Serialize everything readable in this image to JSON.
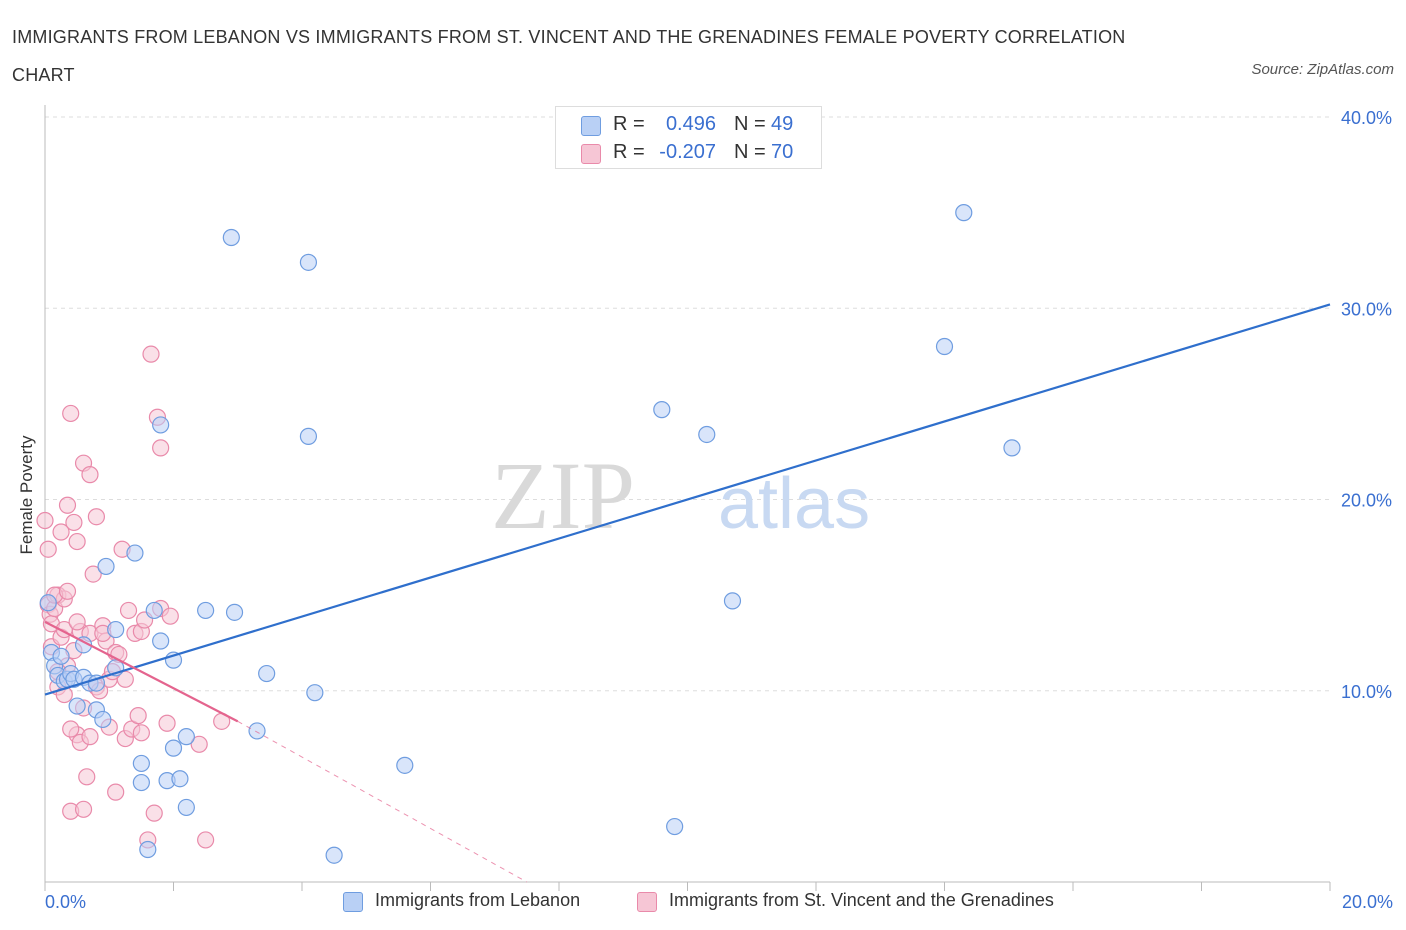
{
  "title": "IMMIGRANTS FROM LEBANON VS IMMIGRANTS FROM ST. VINCENT AND THE GRENADINES FEMALE POVERTY CORRELATION CHART",
  "source": "Source: ZipAtlas.com",
  "watermark": {
    "zip": "ZIP",
    "atlas": "atlas"
  },
  "legend_top": {
    "r_label": "R =",
    "n_label": "N =",
    "rows": [
      {
        "r": "0.496",
        "n": "49"
      },
      {
        "r": "-0.207",
        "n": "70"
      }
    ]
  },
  "colors": {
    "blue_fill": "#b9d0f5",
    "blue_stroke": "#6f9de0",
    "blue_line": "#2f6fcc",
    "pink_fill": "#f6c6d5",
    "pink_stroke": "#e98aaa",
    "pink_line": "#e4648e",
    "axis_text": "#3a6fd0",
    "grid": "#dddddd"
  },
  "chart_data": {
    "type": "scatter",
    "title": "IMMIGRANTS FROM LEBANON VS IMMIGRANTS FROM ST. VINCENT AND THE GRENADINES FEMALE POVERTY CORRELATION CHART",
    "xlabel": "",
    "ylabel": "Female Poverty",
    "xlim": [
      0,
      20
    ],
    "ylim": [
      0,
      40
    ],
    "x_tick_labels": [
      "0.0%",
      "20.0%"
    ],
    "y_ticks": [
      10,
      20,
      30,
      40
    ],
    "y_tick_labels": [
      "10.0%",
      "20.0%",
      "30.0%",
      "40.0%"
    ],
    "grid": true,
    "legend_position": "bottom",
    "series": [
      {
        "name": "Immigrants from Lebanon",
        "r": 0.496,
        "n": 49,
        "trend": {
          "x": [
            0,
            20
          ],
          "y": [
            9.8,
            30.2
          ]
        },
        "points": [
          [
            0.05,
            14.6
          ],
          [
            0.1,
            12.0
          ],
          [
            0.15,
            11.3
          ],
          [
            0.2,
            10.8
          ],
          [
            0.3,
            10.5
          ],
          [
            0.35,
            10.6
          ],
          [
            0.4,
            10.9
          ],
          [
            0.45,
            10.6
          ],
          [
            0.5,
            9.2
          ],
          [
            0.6,
            12.4
          ],
          [
            0.6,
            10.7
          ],
          [
            0.7,
            10.4
          ],
          [
            0.8,
            9.0
          ],
          [
            0.9,
            8.5
          ],
          [
            0.95,
            16.5
          ],
          [
            1.1,
            13.2
          ],
          [
            1.1,
            11.2
          ],
          [
            1.4,
            17.2
          ],
          [
            1.5,
            6.2
          ],
          [
            1.5,
            5.2
          ],
          [
            1.6,
            1.7
          ],
          [
            1.7,
            14.2
          ],
          [
            1.8,
            23.9
          ],
          [
            1.8,
            12.6
          ],
          [
            1.9,
            5.3
          ],
          [
            2.0,
            11.6
          ],
          [
            2.0,
            7.0
          ],
          [
            2.1,
            5.4
          ],
          [
            2.2,
            7.6
          ],
          [
            2.2,
            3.9
          ],
          [
            2.5,
            14.2
          ],
          [
            2.9,
            33.7
          ],
          [
            2.95,
            14.1
          ],
          [
            3.3,
            7.9
          ],
          [
            3.45,
            10.9
          ],
          [
            4.1,
            32.4
          ],
          [
            4.1,
            23.3
          ],
          [
            4.2,
            9.9
          ],
          [
            4.5,
            1.4
          ],
          [
            5.6,
            6.1
          ],
          [
            9.6,
            24.7
          ],
          [
            9.8,
            2.9
          ],
          [
            10.3,
            23.4
          ],
          [
            10.7,
            14.7
          ],
          [
            14.0,
            28.0
          ],
          [
            14.3,
            35.0
          ],
          [
            15.05,
            22.7
          ],
          [
            0.25,
            11.8
          ],
          [
            0.8,
            10.4
          ]
        ]
      },
      {
        "name": "Immigrants from St. Vincent and the Grenadines",
        "r": -0.207,
        "n": 70,
        "trend": {
          "x": [
            0,
            3.0
          ],
          "y": [
            13.6,
            8.4
          ]
        },
        "trend_dashed": {
          "x": [
            3.0,
            7.5
          ],
          "y": [
            8.4,
            0
          ]
        },
        "points": [
          [
            0.0,
            18.9
          ],
          [
            0.05,
            17.4
          ],
          [
            0.05,
            14.5
          ],
          [
            0.08,
            14.0
          ],
          [
            0.1,
            13.5
          ],
          [
            0.1,
            12.3
          ],
          [
            0.15,
            14.3
          ],
          [
            0.2,
            15.0
          ],
          [
            0.2,
            10.2
          ],
          [
            0.25,
            12.8
          ],
          [
            0.25,
            18.3
          ],
          [
            0.3,
            14.8
          ],
          [
            0.3,
            13.2
          ],
          [
            0.3,
            9.8
          ],
          [
            0.35,
            19.7
          ],
          [
            0.35,
            11.3
          ],
          [
            0.4,
            24.5
          ],
          [
            0.4,
            3.7
          ],
          [
            0.45,
            18.8
          ],
          [
            0.45,
            12.1
          ],
          [
            0.5,
            17.8
          ],
          [
            0.5,
            7.7
          ],
          [
            0.55,
            13.1
          ],
          [
            0.55,
            7.3
          ],
          [
            0.6,
            21.9
          ],
          [
            0.6,
            9.1
          ],
          [
            0.6,
            3.8
          ],
          [
            0.65,
            5.5
          ],
          [
            0.7,
            13.0
          ],
          [
            0.7,
            21.3
          ],
          [
            0.7,
            7.6
          ],
          [
            0.75,
            16.1
          ],
          [
            0.8,
            19.1
          ],
          [
            0.8,
            10.2
          ],
          [
            0.85,
            10.0
          ],
          [
            0.9,
            13.4
          ],
          [
            0.95,
            12.6
          ],
          [
            1.0,
            8.1
          ],
          [
            1.0,
            10.6
          ],
          [
            1.1,
            12.0
          ],
          [
            1.1,
            4.7
          ],
          [
            1.15,
            11.9
          ],
          [
            1.2,
            17.4
          ],
          [
            1.25,
            7.5
          ],
          [
            1.3,
            14.2
          ],
          [
            1.35,
            8.0
          ],
          [
            1.4,
            13.0
          ],
          [
            1.45,
            8.7
          ],
          [
            1.5,
            13.1
          ],
          [
            1.5,
            7.8
          ],
          [
            1.55,
            13.7
          ],
          [
            1.6,
            2.2
          ],
          [
            1.65,
            27.6
          ],
          [
            1.7,
            3.6
          ],
          [
            1.75,
            24.3
          ],
          [
            1.8,
            22.7
          ],
          [
            1.8,
            14.3
          ],
          [
            1.9,
            8.3
          ],
          [
            1.95,
            13.9
          ],
          [
            2.4,
            7.2
          ],
          [
            2.5,
            2.2
          ],
          [
            2.75,
            8.4
          ],
          [
            0.15,
            15.0
          ],
          [
            0.9,
            13.0
          ],
          [
            1.25,
            10.6
          ],
          [
            0.2,
            11.0
          ],
          [
            0.4,
            8.0
          ],
          [
            0.5,
            13.6
          ],
          [
            1.05,
            11.0
          ],
          [
            0.35,
            15.2
          ]
        ]
      }
    ]
  },
  "legend_bottom": [
    {
      "label": "Immigrants from Lebanon"
    },
    {
      "label": "Immigrants from St. Vincent and the Grenadines"
    }
  ]
}
